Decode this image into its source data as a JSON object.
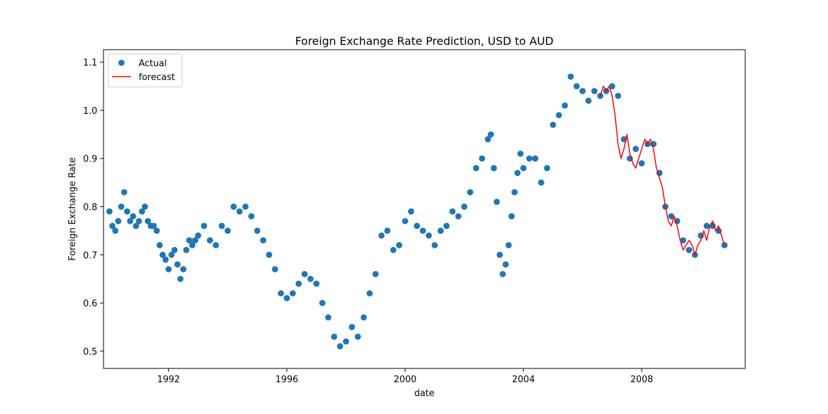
{
  "chart_data": {
    "type": "scatter",
    "title": "Foreign Exchange Rate Prediction, USD to AUD",
    "xlabel": "date",
    "ylabel": "Foreign Exchange Rate",
    "xlim": [
      1989.8,
      2011.5
    ],
    "ylim": [
      0.464,
      1.126
    ],
    "x_ticks": [
      {
        "value": 1992,
        "label": "1992"
      },
      {
        "value": 1996,
        "label": "1996"
      },
      {
        "value": 2000,
        "label": "2000"
      },
      {
        "value": 2004,
        "label": "2004"
      },
      {
        "value": 2008,
        "label": "2008"
      }
    ],
    "y_ticks": [
      {
        "value": 0.5,
        "label": "0.5"
      },
      {
        "value": 0.6,
        "label": "0.6"
      },
      {
        "value": 0.7,
        "label": "0.7"
      },
      {
        "value": 0.8,
        "label": "0.8"
      },
      {
        "value": 0.9,
        "label": "0.9"
      },
      {
        "value": 1.0,
        "label": "1.0"
      },
      {
        "value": 1.1,
        "label": "1.1"
      }
    ],
    "grid": false,
    "legend": {
      "position": "top-left",
      "entries": [
        "Actual",
        "forecast"
      ]
    },
    "series": [
      {
        "name": "Actual",
        "kind": "points",
        "color": "#1f77b4",
        "x": [
          1990.0,
          1990.1,
          1990.2,
          1990.3,
          1990.4,
          1990.5,
          1990.6,
          1990.7,
          1990.8,
          1990.9,
          1991.0,
          1991.1,
          1991.2,
          1991.3,
          1991.4,
          1991.5,
          1991.6,
          1991.7,
          1991.8,
          1991.9,
          1992.0,
          1992.1,
          1992.2,
          1992.3,
          1992.4,
          1992.5,
          1992.6,
          1992.7,
          1992.8,
          1992.9,
          1993.0,
          1993.2,
          1993.4,
          1993.6,
          1993.8,
          1994.0,
          1994.2,
          1994.4,
          1994.6,
          1994.8,
          1995.0,
          1995.2,
          1995.4,
          1995.6,
          1995.8,
          1996.0,
          1996.2,
          1996.4,
          1996.6,
          1996.8,
          1997.0,
          1997.2,
          1997.4,
          1997.6,
          1997.8,
          1998.0,
          1998.2,
          1998.4,
          1998.6,
          1998.8,
          1999.0,
          1999.2,
          1999.4,
          1999.6,
          1999.8,
          2000.0,
          2000.2,
          2000.4,
          2000.6,
          2000.8,
          2001.0,
          2001.2,
          2001.4,
          2001.6,
          2001.8,
          2002.0,
          2002.2,
          2002.4,
          2002.6,
          2002.8,
          2002.9,
          2003.0,
          2003.1,
          2003.2,
          2003.3,
          2003.4,
          2003.5,
          2003.6,
          2003.7,
          2003.8,
          2003.9,
          2004.0,
          2004.2,
          2004.4,
          2004.6,
          2004.8,
          2005.0,
          2005.2,
          2005.4,
          2005.6,
          2005.8,
          2006.0,
          2006.2,
          2006.4,
          2006.6,
          2006.8,
          2007.0,
          2007.2,
          2007.4,
          2007.6,
          2007.8,
          2008.0,
          2008.2,
          2008.4,
          2008.6,
          2008.8,
          2009.0,
          2009.2,
          2009.4,
          2009.6,
          2009.8,
          2010.0,
          2010.2,
          2010.4,
          2010.6,
          2010.8
        ],
        "y": [
          0.79,
          0.76,
          0.75,
          0.77,
          0.8,
          0.83,
          0.79,
          0.77,
          0.78,
          0.76,
          0.77,
          0.79,
          0.8,
          0.77,
          0.76,
          0.76,
          0.75,
          0.72,
          0.7,
          0.69,
          0.67,
          0.7,
          0.71,
          0.68,
          0.65,
          0.67,
          0.71,
          0.73,
          0.72,
          0.73,
          0.74,
          0.76,
          0.73,
          0.72,
          0.76,
          0.75,
          0.8,
          0.79,
          0.8,
          0.78,
          0.75,
          0.73,
          0.7,
          0.67,
          0.62,
          0.61,
          0.62,
          0.64,
          0.66,
          0.65,
          0.64,
          0.6,
          0.57,
          0.53,
          0.51,
          0.52,
          0.55,
          0.53,
          0.57,
          0.62,
          0.66,
          0.74,
          0.75,
          0.71,
          0.72,
          0.77,
          0.79,
          0.76,
          0.75,
          0.74,
          0.72,
          0.75,
          0.76,
          0.79,
          0.78,
          0.8,
          0.83,
          0.88,
          0.9,
          0.94,
          0.95,
          0.88,
          0.81,
          0.7,
          0.66,
          0.68,
          0.72,
          0.78,
          0.83,
          0.87,
          0.91,
          0.88,
          0.9,
          0.9,
          0.85,
          0.88,
          0.97,
          0.99,
          1.01,
          1.07,
          1.05,
          1.04,
          1.02,
          1.04,
          1.03,
          1.04,
          1.05,
          1.03,
          0.94,
          0.9,
          0.92,
          0.89,
          0.93,
          0.93,
          0.87,
          0.8,
          0.78,
          0.77,
          0.73,
          0.71,
          0.7,
          0.74,
          0.76,
          0.76,
          0.75,
          0.72
        ]
      },
      {
        "name": "forecast",
        "kind": "line",
        "color": "#ff0000",
        "x": [
          2006.6,
          2006.7,
          2006.8,
          2006.9,
          2007.0,
          2007.1,
          2007.2,
          2007.3,
          2007.4,
          2007.5,
          2007.6,
          2007.7,
          2007.8,
          2007.9,
          2008.0,
          2008.1,
          2008.2,
          2008.3,
          2008.4,
          2008.5,
          2008.6,
          2008.7,
          2008.8,
          2008.9,
          2009.0,
          2009.1,
          2009.2,
          2009.3,
          2009.4,
          2009.5,
          2009.6,
          2009.7,
          2009.8,
          2009.9,
          2010.0,
          2010.1,
          2010.2,
          2010.3,
          2010.4,
          2010.5,
          2010.6,
          2010.7,
          2010.8
        ],
        "y": [
          1.03,
          1.05,
          1.04,
          1.05,
          1.03,
          0.99,
          0.93,
          0.9,
          0.92,
          0.95,
          0.91,
          0.89,
          0.88,
          0.9,
          0.92,
          0.94,
          0.93,
          0.94,
          0.92,
          0.88,
          0.86,
          0.84,
          0.8,
          0.77,
          0.76,
          0.78,
          0.76,
          0.73,
          0.71,
          0.72,
          0.73,
          0.72,
          0.7,
          0.72,
          0.73,
          0.75,
          0.73,
          0.76,
          0.77,
          0.75,
          0.76,
          0.74,
          0.72
        ]
      }
    ]
  }
}
